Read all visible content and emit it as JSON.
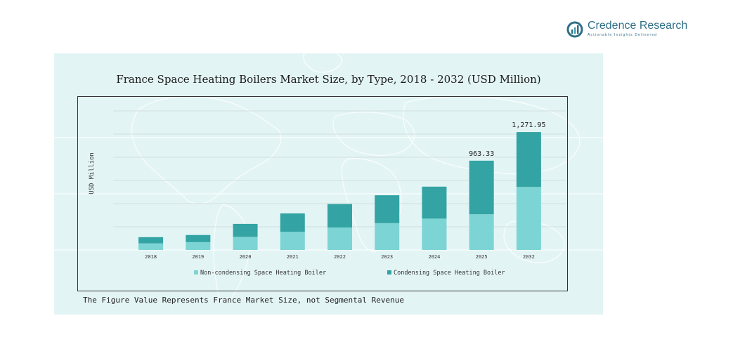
{
  "brand": {
    "name": "Credence Research",
    "tagline": "Actionable Insights Delivered",
    "color": "#2f6e86"
  },
  "footnote": "The Figure Value Represents France Market Size, not Segmental Revenue",
  "chart_data": {
    "type": "bar",
    "stacked": true,
    "title": "France Space Heating Boilers Market Size, by Type, 2018 - 2032 (USD Million)",
    "xlabel": "",
    "ylabel": "USD Million",
    "categories": [
      "2018",
      "2019",
      "2020",
      "2021",
      "2022",
      "2023",
      "2024",
      "2025",
      "2032"
    ],
    "series": [
      {
        "name": "Non-condensing Space Heating Boiler",
        "color": "#7dd4d4",
        "values": [
          71,
          84,
          141,
          196,
          242,
          289,
          338,
          385,
          680
        ]
      },
      {
        "name": "Condensing Space Heating Boiler",
        "color": "#33a3a3",
        "values": [
          67,
          77,
          140,
          198,
          253,
          301,
          345,
          578,
          592
        ]
      }
    ],
    "data_labels": [
      {
        "category": "2025",
        "text": "963.33"
      },
      {
        "category": "2032",
        "text": "1,271.95"
      }
    ],
    "ylim": [
      0,
      1500
    ],
    "grid": true,
    "legend_position": "bottom"
  }
}
